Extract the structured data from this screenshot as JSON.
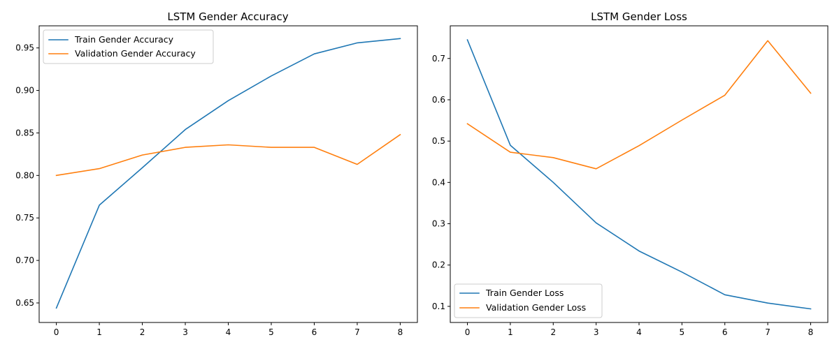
{
  "chart_data": [
    {
      "type": "line",
      "title": "LSTM Gender Accuracy",
      "xlabel": "",
      "ylabel": "",
      "x": [
        0,
        1,
        2,
        3,
        4,
        5,
        6,
        7,
        8
      ],
      "xlim": [
        -0.4,
        8.4
      ],
      "ylim": [
        0.627,
        0.976
      ],
      "xticks": [
        0,
        1,
        2,
        3,
        4,
        5,
        6,
        7,
        8
      ],
      "yticks": [
        0.65,
        0.7,
        0.75,
        0.8,
        0.85,
        0.9,
        0.95
      ],
      "ytick_labels": [
        "0.65",
        "0.70",
        "0.75",
        "0.80",
        "0.85",
        "0.90",
        "0.95"
      ],
      "grid": false,
      "legend_position": "upper left",
      "series": [
        {
          "name": "Train Gender Accuracy",
          "color": "#1f77b4",
          "values": [
            0.644,
            0.765,
            0.809,
            0.854,
            0.888,
            0.917,
            0.943,
            0.956,
            0.961
          ]
        },
        {
          "name": "Validation Gender Accuracy",
          "color": "#ff7f0e",
          "values": [
            0.8,
            0.808,
            0.824,
            0.833,
            0.836,
            0.833,
            0.833,
            0.813,
            0.848
          ]
        }
      ]
    },
    {
      "type": "line",
      "title": "LSTM Gender Loss",
      "xlabel": "",
      "ylabel": "",
      "x": [
        0,
        1,
        2,
        3,
        4,
        5,
        6,
        7,
        8
      ],
      "xlim": [
        -0.4,
        8.4
      ],
      "ylim": [
        0.061,
        0.779
      ],
      "xticks": [
        0,
        1,
        2,
        3,
        4,
        5,
        6,
        7,
        8
      ],
      "yticks": [
        0.1,
        0.2,
        0.3,
        0.4,
        0.5,
        0.6,
        0.7
      ],
      "ytick_labels": [
        "0.1",
        "0.2",
        "0.3",
        "0.4",
        "0.5",
        "0.6",
        "0.7"
      ],
      "grid": false,
      "legend_position": "lower left",
      "series": [
        {
          "name": "Train Gender Loss",
          "color": "#1f77b4",
          "values": [
            0.745,
            0.49,
            0.4,
            0.302,
            0.234,
            0.183,
            0.128,
            0.108,
            0.094
          ]
        },
        {
          "name": "Validation Gender Loss",
          "color": "#ff7f0e",
          "values": [
            0.542,
            0.473,
            0.46,
            0.433,
            0.489,
            0.551,
            0.611,
            0.743,
            0.616
          ]
        }
      ]
    }
  ]
}
